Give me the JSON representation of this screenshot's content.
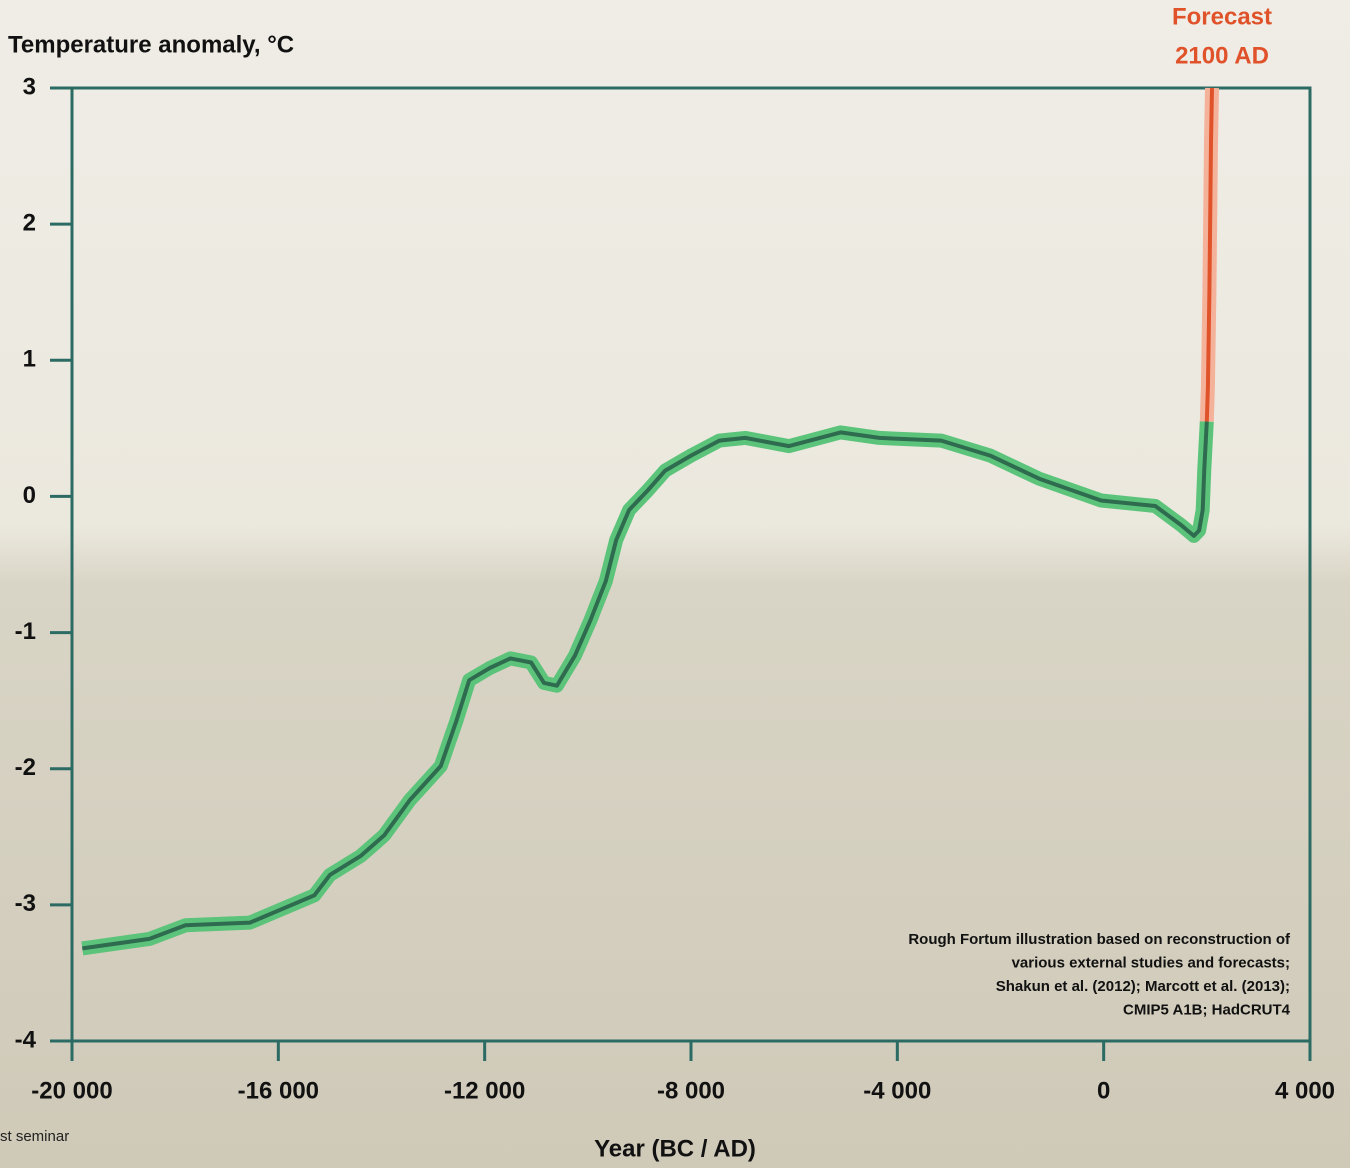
{
  "chart_data": {
    "type": "line",
    "y_axis_title": "Temperature anomaly, °C",
    "x_axis_title": "Year (BC / AD)",
    "forecast_label": [
      "Forecast",
      "2100 AD"
    ],
    "forecast_color": "#e0522a",
    "source_note": [
      "Rough Fortum illustration based on reconstruction of",
      "various external studies and forecasts;",
      "Shakun et al. (2012); Marcott et al. (2013);",
      "CMIP5 A1B; HadCRUT4"
    ],
    "footer": "st seminar",
    "axis_color": "#2b6b63",
    "xlim": [
      -20000,
      4000
    ],
    "ylim": [
      -4,
      3
    ],
    "xticks": [
      {
        "value": -20000,
        "label": "-20 000"
      },
      {
        "value": -16000,
        "label": "-16 000"
      },
      {
        "value": -12000,
        "label": "-12 000"
      },
      {
        "value": -8000,
        "label": "-8 000"
      },
      {
        "value": -4000,
        "label": "-4 000"
      },
      0,
      {
        "value": 4000,
        "label": "4 000"
      }
    ],
    "yticks": [
      3,
      2,
      1,
      0,
      -1,
      -2,
      -3,
      -4
    ],
    "x": [
      -19800,
      -18500,
      -17800,
      -16550,
      -15300,
      -15000,
      -14400,
      -13950,
      -13450,
      -12850,
      -12550,
      -12300,
      -11900,
      -11500,
      -11100,
      -10850,
      -10600,
      -10250,
      -9950,
      -9650,
      -9450,
      -9200,
      -8850,
      -8500,
      -8000,
      -7450,
      -6950,
      -6100,
      -5100,
      -4350,
      -3150,
      -2200,
      -1250,
      -50,
      1000,
      1500,
      1750,
      1850,
      1920,
      1950,
      2000,
      2020,
      2050,
      2080,
      2100
    ],
    "series": [
      {
        "color": "#5cc47a",
        "line_color": "#2e6b4f",
        "values": [
          -3.32,
          -3.25,
          -3.15,
          -3.13,
          -2.93,
          -2.78,
          -2.64,
          -2.49,
          -2.23,
          -1.98,
          -1.65,
          -1.35,
          -1.26,
          -1.19,
          -1.22,
          -1.37,
          -1.39,
          -1.17,
          -0.91,
          -0.62,
          -0.32,
          -0.1,
          0.04,
          0.19,
          0.3,
          0.41,
          0.43,
          0.37,
          0.47,
          0.43,
          0.41,
          0.3,
          0.13,
          -0.03,
          -0.07,
          -0.21,
          -0.29,
          -0.25,
          -0.1,
          0.2,
          0.55,
          null,
          null,
          null,
          null
        ]
      },
      {
        "color": "#f5b29b",
        "line_color": "#e0522a",
        "values": [
          null,
          null,
          null,
          null,
          null,
          null,
          null,
          null,
          null,
          null,
          null,
          null,
          null,
          null,
          null,
          null,
          null,
          null,
          null,
          null,
          null,
          null,
          null,
          null,
          null,
          null,
          null,
          null,
          null,
          null,
          null,
          null,
          null,
          null,
          null,
          null,
          null,
          null,
          null,
          null,
          0.55,
          0.8,
          1.5,
          2.6,
          3.0
        ]
      }
    ]
  }
}
